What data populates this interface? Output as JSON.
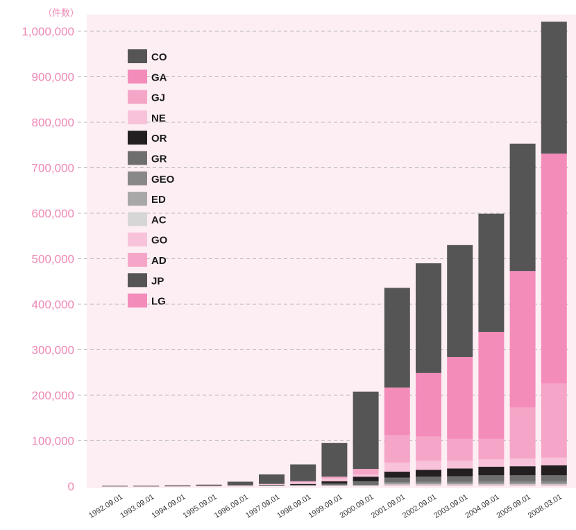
{
  "chart_data": {
    "type": "bar",
    "stacked": true,
    "y_unit_label": "（件数）",
    "ylim": [
      0,
      1000000
    ],
    "yticks": [
      0,
      100000,
      200000,
      300000,
      400000,
      500000,
      600000,
      700000,
      800000,
      900000,
      1000000
    ],
    "ytick_labels": [
      "0",
      "100,000",
      "200,000",
      "300,000",
      "400,000",
      "500,000",
      "600,000",
      "700,000",
      "800,000",
      "900,000",
      "1,000,000"
    ],
    "grid": true,
    "legend_position": "top-left",
    "categories": [
      "1992.09.01",
      "1993.09.01",
      "1994.09.01",
      "1995.09.01",
      "1996.09.01",
      "1997.09.01",
      "1998.09.01",
      "1999.09.01",
      "2000.09.01",
      "2001.09.01",
      "2002.09.01",
      "2003.09.01",
      "2004.09.01",
      "2005.09.01",
      "2008.03.01"
    ],
    "series": [
      {
        "name": "LG",
        "color": "#f48cba",
        "values": [
          0,
          0,
          0,
          0,
          0,
          0,
          0,
          0,
          0,
          0,
          0,
          0,
          0,
          0,
          0
        ]
      },
      {
        "name": "JP",
        "color": "#555555",
        "values": [
          0,
          0,
          0,
          0,
          0,
          0,
          0,
          0,
          0,
          0,
          0,
          0,
          0,
          0,
          0
        ]
      },
      {
        "name": "AD",
        "color": "#f5a6c8",
        "values": [
          0,
          0,
          0,
          0,
          0,
          0,
          0,
          0,
          0,
          1000,
          1000,
          1000,
          1000,
          1000,
          1000
        ]
      },
      {
        "name": "GO",
        "color": "#f8c2da",
        "values": [
          0,
          0,
          0,
          0,
          0,
          0,
          0,
          0,
          0,
          1000,
          1000,
          1000,
          1000,
          1000,
          1000
        ]
      },
      {
        "name": "AC",
        "color": "#d6d6d6",
        "values": [
          200,
          200,
          300,
          500,
          800,
          1000,
          1000,
          1000,
          1000,
          2000,
          2000,
          2000,
          2000,
          2000,
          2000
        ]
      },
      {
        "name": "ED",
        "color": "#a8a8a8",
        "values": [
          200,
          200,
          300,
          400,
          600,
          1000,
          1000,
          2000,
          2000,
          2000,
          2000,
          2000,
          2000,
          2000,
          2000
        ]
      },
      {
        "name": "GEO",
        "color": "#888888",
        "values": [
          0,
          0,
          0,
          0,
          0,
          0,
          0,
          0,
          0,
          3000,
          4000,
          4000,
          5000,
          5000,
          5000
        ]
      },
      {
        "name": "GR",
        "color": "#6e6e6e",
        "values": [
          0,
          0,
          0,
          0,
          0,
          0,
          1000,
          3000,
          8000,
          10000,
          11000,
          12000,
          13000,
          13000,
          13000
        ]
      },
      {
        "name": "OR",
        "color": "#231f20",
        "values": [
          100,
          100,
          200,
          300,
          600,
          1000,
          2000,
          5000,
          10000,
          13000,
          15000,
          17000,
          19000,
          20000,
          22000
        ]
      },
      {
        "name": "NE",
        "color": "#f8c2da",
        "values": [
          300,
          300,
          300,
          500,
          1000,
          2000,
          4000,
          6000,
          5000,
          20000,
          20000,
          17000,
          16000,
          17000,
          17000
        ]
      },
      {
        "name": "GJ",
        "color": "#f5a6c8",
        "values": [
          0,
          0,
          0,
          0,
          0,
          0,
          2000,
          4000,
          12000,
          60000,
          53000,
          48000,
          45000,
          112000,
          163000
        ]
      },
      {
        "name": "GA",
        "color": "#f48cba",
        "values": [
          0,
          0,
          0,
          0,
          0,
          0,
          0,
          0,
          0,
          105000,
          140000,
          180000,
          235000,
          300000,
          505000
        ]
      },
      {
        "name": "CO",
        "color": "#555555",
        "values": [
          200,
          700,
          1400,
          1800,
          7000,
          21000,
          37000,
          74000,
          170000,
          219000,
          241000,
          246000,
          260000,
          280000,
          290000
        ]
      }
    ],
    "legend_order": [
      "CO",
      "GA",
      "GJ",
      "NE",
      "OR",
      "GR",
      "GEO",
      "ED",
      "AC",
      "GO",
      "AD",
      "JP",
      "LG"
    ],
    "colors": {
      "plot_background": "#fdeef3",
      "gridline": "#b8b8b8",
      "axis_label": "#ef86b4"
    }
  }
}
